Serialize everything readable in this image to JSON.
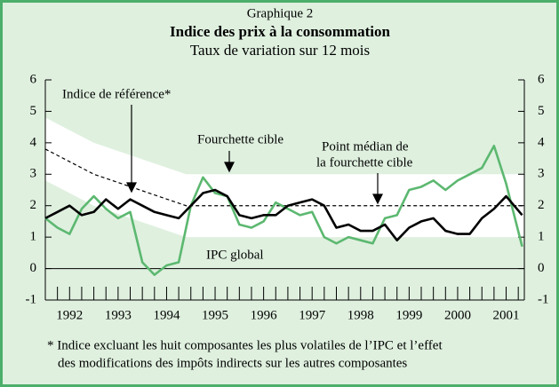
{
  "chart_data": {
    "type": "line",
    "header": "Graphique 2",
    "title": "Indice des prix à la consommation",
    "subtitle": "Taux de variation sur 12 mois",
    "xlim": [
      1992,
      2001.875
    ],
    "xticks": [
      {
        "value": 1992.5,
        "label": "1992"
      },
      {
        "value": 1993.5,
        "label": "1993"
      },
      {
        "value": 1994.5,
        "label": "1994"
      },
      {
        "value": 1995.5,
        "label": "1995"
      },
      {
        "value": 1996.5,
        "label": "1996"
      },
      {
        "value": 1997.5,
        "label": "1997"
      },
      {
        "value": 1998.5,
        "label": "1998"
      },
      {
        "value": 1999.5,
        "label": "1999"
      },
      {
        "value": 2000.5,
        "label": "2000"
      },
      {
        "value": 2001.5,
        "label": "2001"
      }
    ],
    "ylim": [
      -1,
      6
    ],
    "yticks": [
      -1,
      0,
      1,
      2,
      3,
      4,
      5,
      6
    ],
    "band": {
      "name": "Fourchette cible",
      "color": "#ffffff",
      "x": [
        1992,
        1993,
        1994.9,
        2001.875
      ],
      "upper": [
        4.8,
        4,
        3,
        3
      ],
      "lower": [
        2.8,
        2,
        1,
        1
      ]
    },
    "midpoint": {
      "name_lines": [
        "Point médian de",
        "la fourchette cible"
      ],
      "color": "#000000",
      "x": [
        1992,
        1993,
        1994.9,
        2001.875
      ],
      "values": [
        3.8,
        3,
        2,
        2
      ]
    },
    "series": [
      {
        "name": "IPC global",
        "color": "#5cb870",
        "x": [
          1992.0,
          1992.25,
          1992.5,
          1992.75,
          1993.0,
          1993.25,
          1993.5,
          1993.75,
          1994.0,
          1994.25,
          1994.5,
          1994.75,
          1995.0,
          1995.25,
          1995.5,
          1995.75,
          1996.0,
          1996.25,
          1996.5,
          1996.75,
          1997.0,
          1997.25,
          1997.5,
          1997.75,
          1998.0,
          1998.25,
          1998.5,
          1998.75,
          1999.0,
          1999.25,
          1999.5,
          1999.75,
          2000.0,
          2000.25,
          2000.5,
          2000.75,
          2001.0,
          2001.25,
          2001.5,
          2001.83
        ],
        "values": [
          1.6,
          1.3,
          1.1,
          1.9,
          2.3,
          1.9,
          1.6,
          1.8,
          0.2,
          -0.2,
          0.1,
          0.2,
          2.0,
          2.9,
          2.4,
          2.3,
          1.4,
          1.3,
          1.5,
          2.1,
          1.9,
          1.7,
          1.8,
          1.0,
          0.8,
          1.0,
          0.9,
          0.8,
          1.6,
          1.7,
          2.5,
          2.6,
          2.8,
          2.5,
          2.8,
          3.0,
          3.2,
          3.9,
          2.7,
          0.7
        ]
      },
      {
        "name": "Indice de référence*",
        "color": "#000000",
        "x": [
          1992.0,
          1992.25,
          1992.5,
          1992.75,
          1993.0,
          1993.25,
          1993.5,
          1993.75,
          1994.0,
          1994.25,
          1994.5,
          1994.75,
          1995.0,
          1995.25,
          1995.5,
          1995.75,
          1996.0,
          1996.25,
          1996.5,
          1996.75,
          1997.0,
          1997.25,
          1997.5,
          1997.75,
          1998.0,
          1998.25,
          1998.5,
          1998.75,
          1999.0,
          1999.25,
          1999.5,
          1999.75,
          2000.0,
          2000.25,
          2000.5,
          2000.75,
          2001.0,
          2001.25,
          2001.5,
          2001.83
        ],
        "values": [
          1.6,
          1.8,
          2.0,
          1.7,
          1.8,
          2.2,
          1.9,
          2.2,
          2.0,
          1.8,
          1.7,
          1.6,
          2.0,
          2.4,
          2.5,
          2.3,
          1.7,
          1.6,
          1.7,
          1.7,
          2.0,
          2.1,
          2.2,
          2.0,
          1.3,
          1.4,
          1.2,
          1.2,
          1.4,
          0.9,
          1.3,
          1.5,
          1.6,
          1.2,
          1.1,
          1.1,
          1.6,
          1.9,
          2.3,
          1.7
        ]
      }
    ],
    "footnote": [
      "* Indice excluant les huit composantes les plus volatiles de l’IPC et l’effet",
      "des modifications des impôts indirects sur les autres composantes"
    ]
  }
}
